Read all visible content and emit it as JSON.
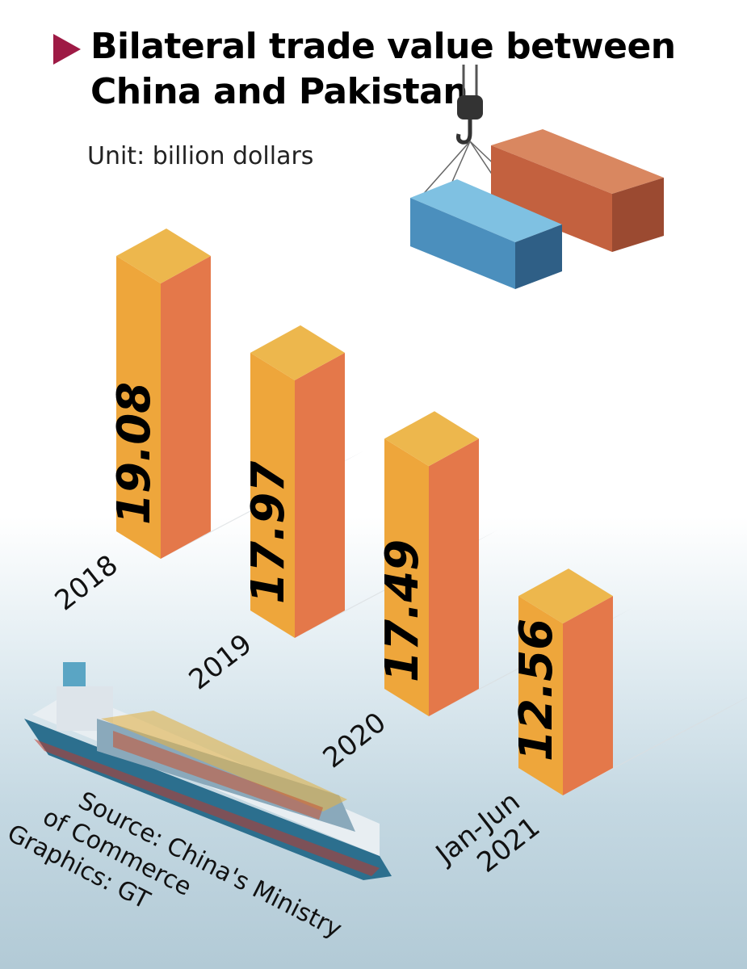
{
  "chart_data": {
    "type": "bar",
    "title": "Bilateral trade value between China and Pakistan",
    "unit": "Unit: billion dollars",
    "categories": [
      "2018",
      "2019",
      "2020",
      "Jan-Jun\n2021"
    ],
    "values": [
      19.08,
      17.97,
      17.49,
      12.56
    ],
    "value_labels": [
      "19.08",
      "17.97",
      "17.49",
      "12.56"
    ],
    "ylim": [
      0,
      20
    ]
  },
  "source": [
    "Source: China's Ministry",
    "of Commerce",
    "Graphics: GT"
  ],
  "colors": {
    "bar_front": "#eea63b",
    "bar_side": "#e4784a",
    "bar_top": "#edb74d",
    "title_marker": "#9e1a45",
    "container_blue": "#4f9cc8",
    "container_red": "#c86a4a"
  }
}
